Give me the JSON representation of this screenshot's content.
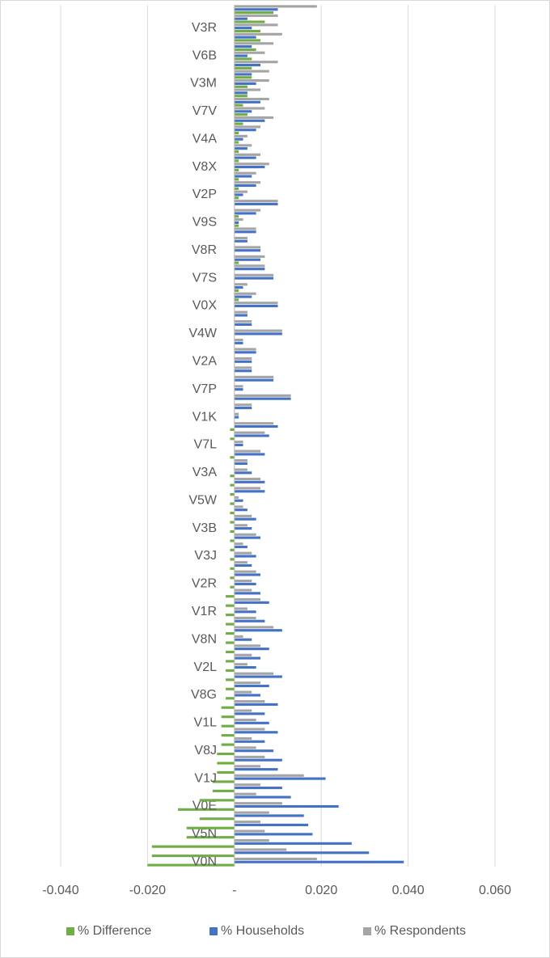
{
  "chart_data": {
    "type": "hbar",
    "categories": [
      "V0N",
      null,
      null,
      "V5N",
      null,
      null,
      "V0E",
      null,
      null,
      "V1J",
      null,
      null,
      "V8J",
      null,
      null,
      "V1L",
      null,
      null,
      "V8G",
      null,
      null,
      "V2L",
      null,
      null,
      "V8N",
      null,
      null,
      "V1R",
      null,
      null,
      "V2R",
      null,
      null,
      "V3J",
      null,
      null,
      "V3B",
      null,
      null,
      "V5W",
      null,
      null,
      "V3A",
      null,
      null,
      "V7L",
      null,
      null,
      "V1K",
      null,
      null,
      "V7P",
      null,
      null,
      "V2A",
      null,
      null,
      "V4W",
      null,
      null,
      "V0X",
      null,
      null,
      "V7S",
      null,
      null,
      "V8R",
      null,
      null,
      "V9S",
      null,
      null,
      "V2P",
      null,
      null,
      "V8X",
      null,
      null,
      "V4A",
      null,
      null,
      "V7V",
      null,
      null,
      "V3M",
      null,
      null,
      "V6B",
      null,
      null,
      "V3R",
      null,
      null
    ],
    "series": [
      {
        "name": "% Difference",
        "color": "#70ad47",
        "values": [
          -0.02,
          -0.019,
          -0.019,
          -0.011,
          -0.011,
          -0.008,
          -0.013,
          -0.008,
          -0.005,
          -0.005,
          -0.004,
          -0.004,
          -0.004,
          -0.003,
          -0.003,
          -0.003,
          -0.003,
          -0.003,
          -0.002,
          -0.002,
          -0.002,
          -0.002,
          -0.002,
          -0.002,
          -0.002,
          -0.002,
          -0.002,
          -0.002,
          -0.002,
          -0.002,
          -0.001,
          -0.001,
          -0.001,
          -0.001,
          -0.001,
          -0.001,
          -0.001,
          -0.001,
          -0.001,
          -0.001,
          -0.001,
          -0.001,
          -0.001,
          0,
          -0.001,
          0,
          -0.001,
          -0.001,
          0,
          0,
          0,
          0,
          0,
          0,
          0,
          0,
          0,
          0,
          0,
          0,
          0,
          0.001,
          0.001,
          0,
          0,
          0.001,
          0,
          0,
          0,
          0.001,
          0.001,
          0,
          0.001,
          0.001,
          0.001,
          0.001,
          0.001,
          0.001,
          0.001,
          0.001,
          0.002,
          0.003,
          0.002,
          0.003,
          0.003,
          0.004,
          0.004,
          0.004,
          0.005,
          0.006,
          0.006,
          0.007,
          0.009
        ]
      },
      {
        "name": "% Households",
        "color": "#4472c4",
        "values": [
          0.039,
          0.031,
          0.027,
          0.018,
          0.017,
          0.016,
          0.024,
          0.013,
          0.011,
          0.021,
          0.01,
          0.011,
          0.009,
          0.007,
          0.01,
          0.008,
          0.007,
          0.01,
          0.006,
          0.008,
          0.011,
          0.005,
          0.006,
          0.008,
          0.004,
          0.011,
          0.007,
          0.005,
          0.008,
          0.006,
          0.005,
          0.006,
          0.004,
          0.005,
          0.003,
          0.006,
          0.004,
          0.005,
          0.003,
          0.002,
          0.007,
          0.007,
          0.004,
          0.003,
          0.007,
          0.002,
          0.008,
          0.01,
          0.001,
          0.004,
          0.013,
          0.002,
          0.009,
          0.004,
          0.004,
          0.005,
          0.002,
          0.011,
          0.004,
          0.003,
          0.01,
          0.004,
          0.002,
          0.009,
          0.007,
          0.006,
          0.006,
          0.003,
          0.005,
          0.001,
          0.005,
          0.01,
          0.002,
          0.005,
          0.004,
          0.007,
          0.005,
          0.003,
          0.002,
          0.005,
          0.007,
          0.004,
          0.006,
          0.003,
          0.005,
          0.004,
          0.006,
          0.003,
          0.004,
          0.005,
          0.004,
          0.003,
          0.01
        ]
      },
      {
        "name": "% Respondents",
        "color": "#a5a5a5",
        "values": [
          0.019,
          0.012,
          0.008,
          0.007,
          0.006,
          0.008,
          0.011,
          0.005,
          0.006,
          0.016,
          0.006,
          0.007,
          0.005,
          0.004,
          0.007,
          0.005,
          0.004,
          0.007,
          0.004,
          0.006,
          0.009,
          0.003,
          0.004,
          0.006,
          0.002,
          0.009,
          0.005,
          0.003,
          0.006,
          0.004,
          0.004,
          0.005,
          0.003,
          0.004,
          0.002,
          0.005,
          0.003,
          0.004,
          0.002,
          0.001,
          0.006,
          0.006,
          0.003,
          0.003,
          0.006,
          0.002,
          0.007,
          0.009,
          0.001,
          0.004,
          0.013,
          0.002,
          0.009,
          0.004,
          0.004,
          0.005,
          0.002,
          0.011,
          0.004,
          0.003,
          0.01,
          0.005,
          0.003,
          0.009,
          0.007,
          0.007,
          0.006,
          0.003,
          0.005,
          0.002,
          0.006,
          0.01,
          0.003,
          0.006,
          0.005,
          0.008,
          0.006,
          0.004,
          0.003,
          0.006,
          0.009,
          0.007,
          0.008,
          0.006,
          0.008,
          0.008,
          0.01,
          0.007,
          0.009,
          0.011,
          0.01,
          0.01,
          0.019
        ]
      }
    ],
    "xlim": [
      -0.04,
      0.06
    ],
    "xticks": [
      {
        "value": -0.04,
        "label": "-0.040"
      },
      {
        "value": -0.02,
        "label": "-0.020"
      },
      {
        "value": 0,
        "label": "-"
      },
      {
        "value": 0.02,
        "label": "0.020"
      },
      {
        "value": 0.04,
        "label": "0.040"
      },
      {
        "value": 0.06,
        "label": "0.060"
      }
    ],
    "grid": true,
    "legend": "bottom"
  }
}
